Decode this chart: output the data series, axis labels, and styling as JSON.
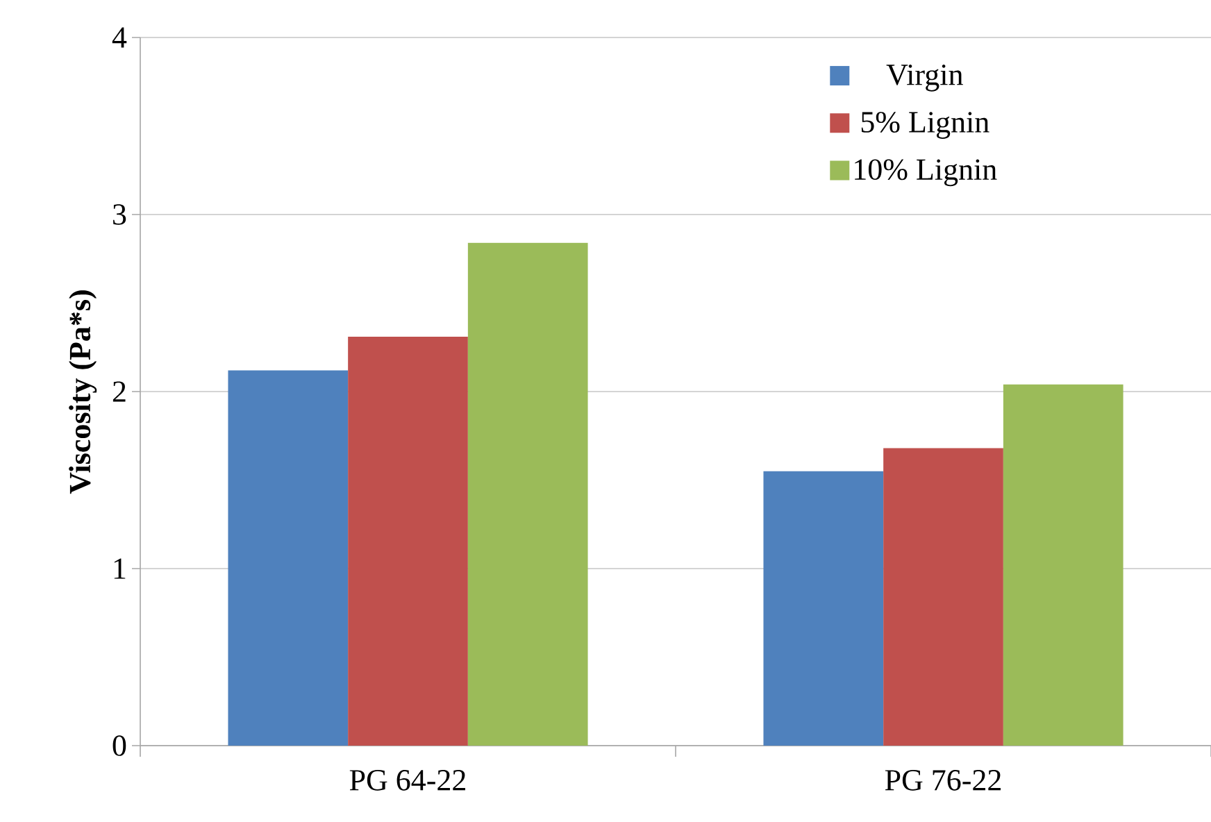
{
  "chart_data": {
    "type": "bar",
    "ylabel": "Viscosity (Pa*s)",
    "categories": [
      "PG 64-22",
      "PG 76-22"
    ],
    "series": [
      {
        "name": "Virgin",
        "color": "#4f81bd",
        "values": [
          2.12,
          1.55
        ]
      },
      {
        "name": "5% Lignin",
        "color": "#c0504d",
        "values": [
          2.31,
          1.68
        ]
      },
      {
        "name": "10% Lignin",
        "color": "#9bbb59",
        "values": [
          2.84,
          2.04
        ]
      }
    ],
    "ylim": [
      0,
      4
    ],
    "yticks": [
      0,
      1,
      2,
      3,
      4
    ],
    "grid": "y",
    "legend": "top right"
  }
}
